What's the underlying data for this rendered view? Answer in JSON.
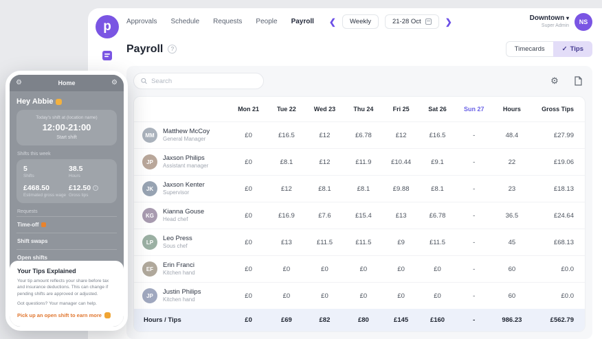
{
  "nav": {
    "logo_glyph": "p",
    "items": [
      "Approvals",
      "Schedule",
      "Requests",
      "People",
      "Payroll"
    ],
    "active": "Payroll",
    "period_type": "Weekly",
    "date_range": "21-28 Oct",
    "location": "Downtown",
    "location_sub": "Super Admin",
    "avatar_initials": "NS"
  },
  "header": {
    "title": "Payroll",
    "tabs": [
      {
        "label": "Timecards",
        "active": false
      },
      {
        "label": "Tips",
        "active": true,
        "check": "✓"
      }
    ]
  },
  "toolbar": {
    "search_placeholder": "Search"
  },
  "table": {
    "columns": [
      "",
      "Mon 21",
      "Tue 22",
      "Wed 23",
      "Thu 24",
      "Fri 25",
      "Sat 26",
      "Sun 27",
      "Hours",
      "Gross Tips"
    ],
    "rows": [
      {
        "name": "Matthew McCoy",
        "role": "General Manager",
        "values": [
          "£0",
          "£16.5",
          "£12",
          "£6.78",
          "£12",
          "£16.5",
          "-",
          "48.4",
          "£27.99"
        ]
      },
      {
        "name": "Jaxson Philips",
        "role": "Assistant manager",
        "values": [
          "£0",
          "£8.1",
          "£12",
          "£11.9",
          "£10.44",
          "£9.1",
          "-",
          "22",
          "£19.06"
        ]
      },
      {
        "name": "Jaxson Kenter",
        "role": "Supervisor",
        "values": [
          "£0",
          "£12",
          "£8.1",
          "£8.1",
          "£9.88",
          "£8.1",
          "-",
          "23",
          "£18.13"
        ]
      },
      {
        "name": "Kianna Gouse",
        "role": "Head chef",
        "values": [
          "£0",
          "£16.9",
          "£7.6",
          "£15.4",
          "£13",
          "£6.78",
          "-",
          "36.5",
          "£24.64"
        ]
      },
      {
        "name": "Leo Press",
        "role": "Sous chef",
        "values": [
          "£0",
          "£13",
          "£11.5",
          "£11.5",
          "£9",
          "£11.5",
          "-",
          "45",
          "£68.13"
        ]
      },
      {
        "name": "Erin Franci",
        "role": "Kitchen hand",
        "values": [
          "£0",
          "£0",
          "£0",
          "£0",
          "£0",
          "£0",
          "-",
          "60",
          "£0.0"
        ]
      },
      {
        "name": "Justin Philips",
        "role": "Kitchen hand",
        "values": [
          "£0",
          "£0",
          "£0",
          "£0",
          "£0",
          "£0",
          "-",
          "60",
          "£0.0"
        ]
      }
    ],
    "footer": {
      "label": "Hours / Tips",
      "values": [
        "£0",
        "£69",
        "£82",
        "£80",
        "£145",
        "£160",
        "-",
        "986.23",
        "£562.79"
      ]
    }
  },
  "phone": {
    "header_title": "Home",
    "greeting": "Hey Abbie",
    "greeting_icon": "wave-hand",
    "shift_card": {
      "label": "Today's shift at (location name)",
      "time": "12:00-21:00",
      "button": "Start shift"
    },
    "week_section_title": "Shifts this week",
    "stats": [
      {
        "value": "5",
        "label": "Shifts"
      },
      {
        "value": "38.5",
        "label": "Hours"
      },
      {
        "value": "£468.50",
        "label": "Estimated gross wage"
      },
      {
        "value": "£12.50",
        "label": "Gross tips",
        "info": true
      }
    ],
    "requests_title": "Requests",
    "request_items": [
      {
        "label": "Time-off",
        "badge_icon": "alert"
      },
      {
        "label": "Shift swaps"
      },
      {
        "label": "Open shifts"
      }
    ],
    "tips_card": {
      "title": "Your Tips Explained",
      "body": "Your tip amount reflects your share before tax and insurance deductions. This can change if pending shifts are approved or adjusted.",
      "note": "Got questions? Your manager can help.",
      "link": "Pick up an open shift to earn more",
      "link_icon": "money-bag"
    }
  },
  "colors": {
    "accent_purple": "#7a55e3",
    "tips_tab_bg": "#e3ddf8",
    "sunday_column": "#6a62e6",
    "footer_row_bg": "#edf1fa",
    "link_orange": "#e0762f",
    "avatar_palette": [
      "#aab2bc",
      "#b9a79a",
      "#97a3b2",
      "#a89bb0",
      "#9bb0a3",
      "#b0a89b",
      "#a0a8bf"
    ]
  }
}
